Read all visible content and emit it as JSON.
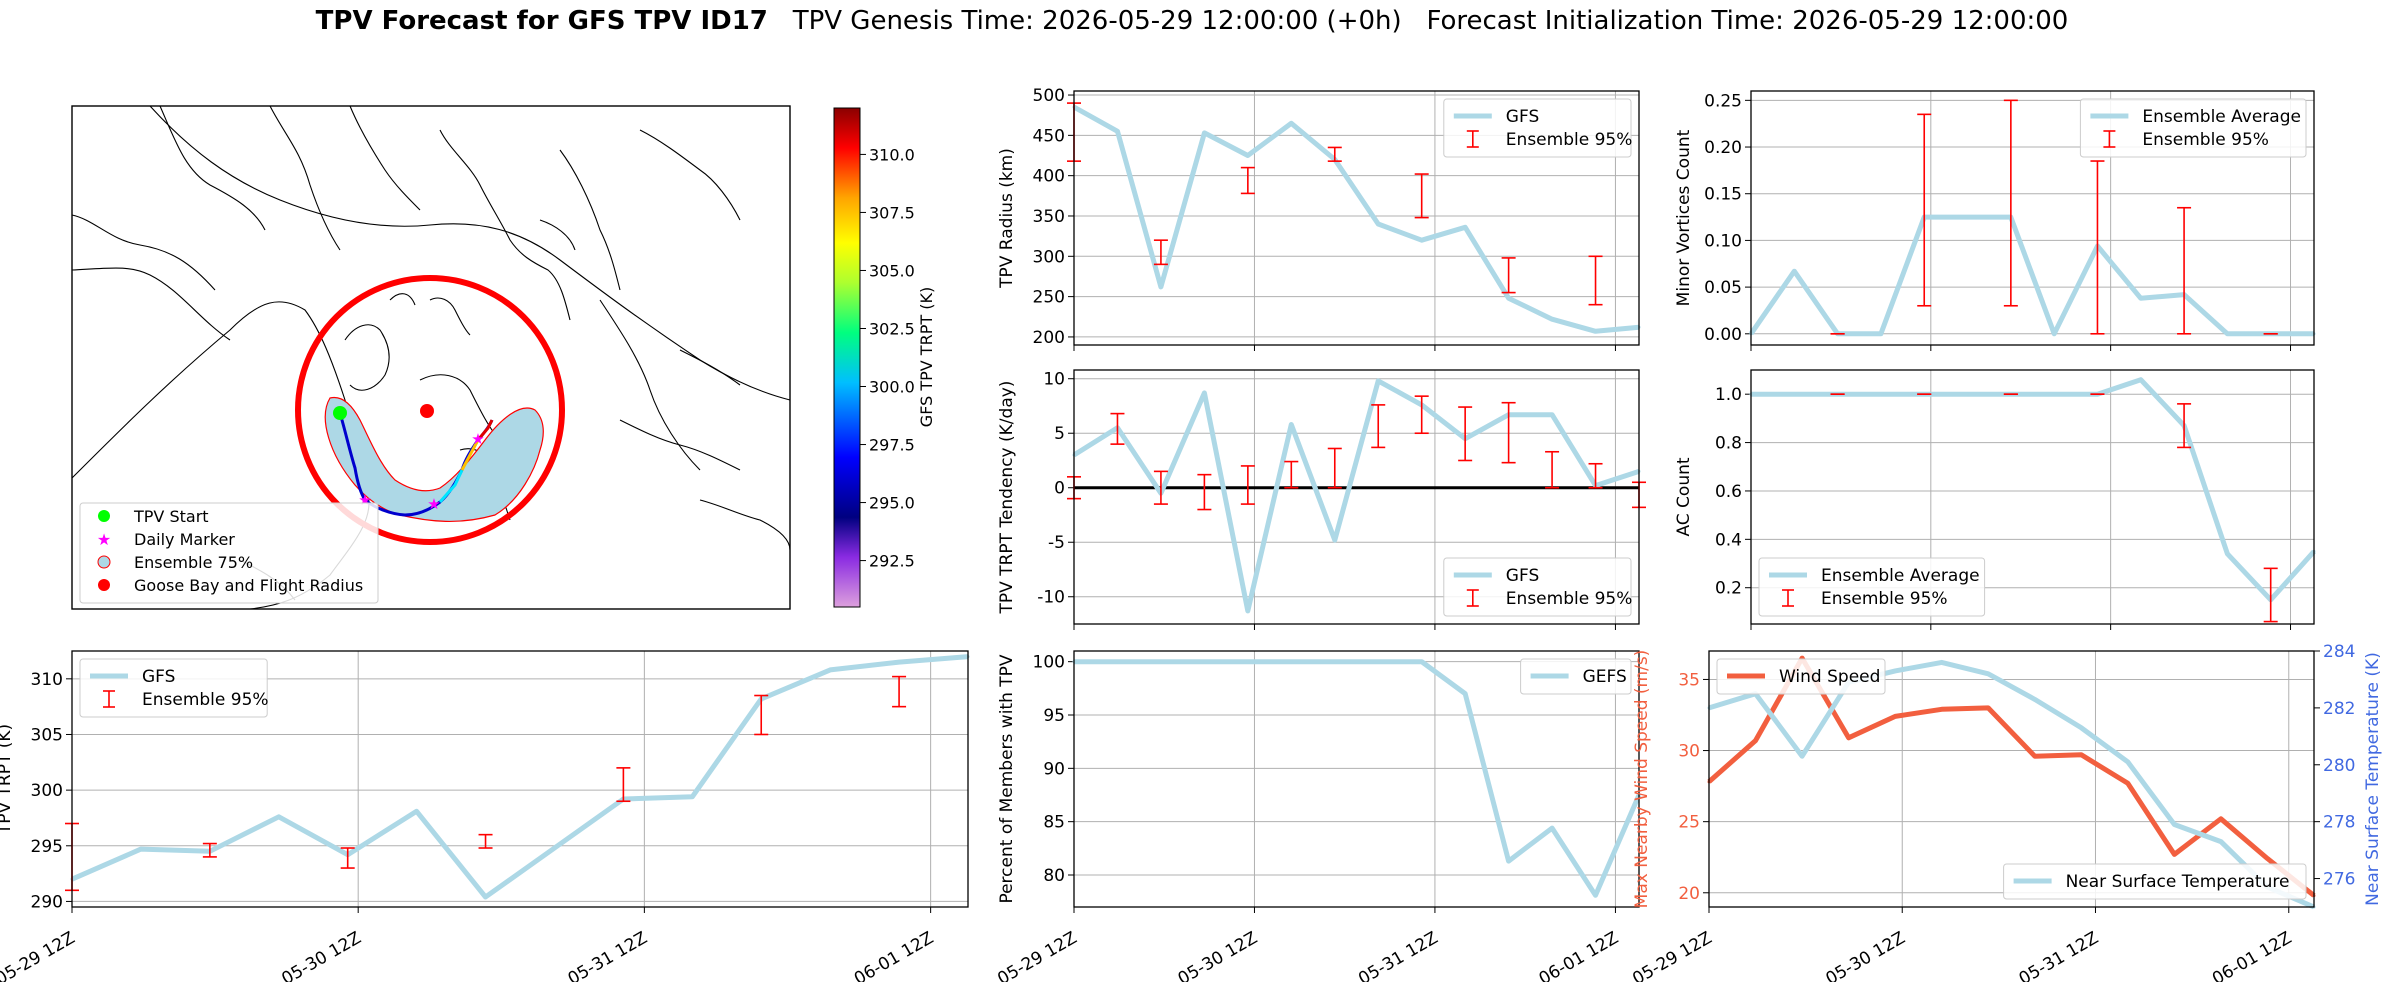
{
  "title": {
    "main": "TPV Forecast for GFS TPV ID17",
    "genesis": "TPV Genesis Time: 2026-05-29 12:00:00 (+0h)",
    "init": "Forecast Initialization Time: 2026-05-29 12:00:00"
  },
  "colors": {
    "gfs": "#add8e6",
    "errorbar": "#ff0000",
    "wind": "#f25f3f",
    "temp": "#4169e1"
  },
  "map": {
    "legend": [
      "TPV Start",
      "Daily Marker",
      "Ensemble 75%",
      "Goose Bay and Flight Radius"
    ],
    "colorbar": {
      "label": "GFS TPV TRPT (K)",
      "ticks": [
        "292.5",
        "295.0",
        "297.5",
        "300.0",
        "302.5",
        "305.0",
        "307.5",
        "310.0"
      ],
      "range": [
        290.5,
        312
      ]
    }
  },
  "time_ticks": [
    "05-29 12Z",
    "05-30 12Z",
    "05-31 12Z",
    "06-01 12Z"
  ],
  "chart_data": [
    {
      "id": "radius",
      "type": "line",
      "ylabel": "TPV Radius (km)",
      "ylim": [
        190,
        505
      ],
      "yticks": [
        200,
        250,
        300,
        350,
        400,
        450,
        500
      ],
      "legend": "top-right",
      "series": [
        {
          "name": "GFS",
          "values": [
            485,
            455,
            262,
            453,
            425,
            465,
            420,
            340,
            320,
            336,
            248,
            222,
            207,
            212
          ]
        }
      ],
      "errorbar": {
        "name": "Ensemble 95%",
        "ranges": [
          [
            418,
            490
          ],
          null,
          [
            290,
            320
          ],
          null,
          [
            378,
            410
          ],
          null,
          [
            418,
            435
          ],
          null,
          [
            348,
            402
          ],
          null,
          [
            255,
            298
          ],
          null,
          [
            240,
            300
          ],
          null
        ]
      }
    },
    {
      "id": "minor",
      "type": "line",
      "ylabel": "Minor Vortices Count",
      "ylim": [
        -0.012,
        0.26
      ],
      "yticks": [
        "0.00",
        "0.05",
        "0.10",
        "0.15",
        "0.20",
        "0.25"
      ],
      "legend": "top-right",
      "series": [
        {
          "name": "Ensemble Average",
          "values": [
            0.0,
            0.067,
            0.0,
            0.0,
            0.125,
            0.125,
            0.125,
            0.0,
            0.094,
            0.038,
            0.042,
            0.0,
            0.0,
            0.0
          ]
        }
      ],
      "errorbar": {
        "name": "Ensemble 95%",
        "ranges": [
          null,
          null,
          [
            0,
            0
          ],
          null,
          [
            0.03,
            0.235
          ],
          null,
          [
            0.03,
            0.25
          ],
          null,
          [
            0,
            0.185
          ],
          null,
          [
            0,
            0.135
          ],
          null,
          [
            0,
            0
          ],
          null
        ]
      }
    },
    {
      "id": "tendency",
      "type": "line",
      "ylabel": "TPV TRPT Tendency (K/day)",
      "ylim": [
        -12.5,
        10.8
      ],
      "yticks": [
        -10,
        -5,
        0,
        5,
        10
      ],
      "legend": "bottom-right",
      "series": [
        {
          "name": "GFS",
          "values": [
            3,
            5.5,
            -0.5,
            8.7,
            -11.3,
            5.8,
            -4.8,
            9.8,
            7.6,
            4.5,
            6.7,
            6.7,
            0.2,
            1.5
          ]
        }
      ],
      "errorbar": {
        "name": "Ensemble 95%",
        "ranges": [
          [
            -1,
            1
          ],
          [
            4,
            6.8
          ],
          [
            -1.5,
            1.5
          ],
          [
            -2,
            1.2
          ],
          [
            -1.5,
            2
          ],
          [
            0,
            2.4
          ],
          [
            0,
            3.6
          ],
          [
            3.7,
            7.6
          ],
          [
            5,
            8.4
          ],
          [
            2.5,
            7.4
          ],
          [
            2.3,
            7.8
          ],
          [
            0,
            3.3
          ],
          [
            0,
            2.2
          ],
          [
            -1.8,
            0.5
          ]
        ]
      },
      "hline": 0
    },
    {
      "id": "ac",
      "type": "line",
      "ylabel": "AC Count",
      "ylim": [
        0.05,
        1.1
      ],
      "yticks": [
        "0.2",
        "0.4",
        "0.6",
        "0.8",
        "1.0"
      ],
      "legend": "bottom-left",
      "series": [
        {
          "name": "Ensemble Average",
          "values": [
            1.0,
            1.0,
            1.0,
            1.0,
            1.0,
            1.0,
            1.0,
            1.0,
            1.0,
            1.06,
            0.87,
            0.34,
            0.15,
            0.35
          ]
        }
      ],
      "errorbar": {
        "name": "Ensemble 95%",
        "ranges": [
          null,
          null,
          [
            1,
            1
          ],
          null,
          [
            1,
            1
          ],
          null,
          [
            1,
            1
          ],
          null,
          [
            1,
            1
          ],
          null,
          [
            0.78,
            0.96
          ],
          null,
          [
            0.06,
            0.28
          ],
          null
        ]
      }
    },
    {
      "id": "trpt",
      "type": "line",
      "ylabel": "TPV TRPT (K)",
      "ylim": [
        289.5,
        312.5
      ],
      "yticks": [
        290,
        295,
        300,
        305,
        310
      ],
      "legend": "top-left",
      "series": [
        {
          "name": "GFS",
          "values": [
            292.0,
            294.7,
            294.5,
            297.6,
            294.2,
            298.1,
            290.4,
            294.8,
            299.2,
            299.4,
            308.2,
            310.8,
            311.5,
            312.0
          ]
        }
      ],
      "errorbar": {
        "name": "Ensemble 95%",
        "ranges": [
          [
            291,
            297
          ],
          null,
          [
            294,
            295.2
          ],
          null,
          [
            293,
            294.8
          ],
          null,
          [
            294.8,
            296
          ],
          null,
          [
            299,
            302
          ],
          null,
          [
            305,
            308.5
          ],
          null,
          [
            307.5,
            310.2
          ],
          null
        ]
      }
    },
    {
      "id": "percent",
      "type": "line",
      "ylabel": "Percent of Members with TPV",
      "ylim": [
        77,
        101
      ],
      "yticks": [
        80,
        85,
        90,
        95,
        100
      ],
      "legend": "top-right",
      "series": [
        {
          "name": "GEFS",
          "values": [
            100,
            100,
            100,
            100,
            100,
            100,
            100,
            100,
            100,
            97,
            81.3,
            84.4,
            78.1,
            87.5
          ]
        }
      ]
    },
    {
      "id": "wind_temp",
      "type": "line",
      "ylabel": "Max Nearby Wind Speed (m/s)",
      "ylabel_right": "Near Surface Temperature (K)",
      "ylim": [
        19,
        37
      ],
      "ylim_right": [
        275,
        284
      ],
      "yticks": [
        20,
        25,
        30,
        35
      ],
      "yticks_right": [
        276,
        278,
        280,
        282,
        284
      ],
      "series": [
        {
          "name": "Wind Speed",
          "axis": "left",
          "values": [
            27.8,
            30.7,
            36.5,
            30.9,
            32.4,
            32.9,
            33.0,
            29.6,
            29.7,
            27.7,
            22.7,
            25.2,
            22.4,
            19.8
          ]
        },
        {
          "name": "Near Surface Temperature",
          "axis": "right",
          "values": [
            282.0,
            282.5,
            280.3,
            282.9,
            283.3,
            283.6,
            283.2,
            282.3,
            281.3,
            280.1,
            277.9,
            277.3,
            275.7,
            275.0
          ]
        }
      ]
    }
  ]
}
